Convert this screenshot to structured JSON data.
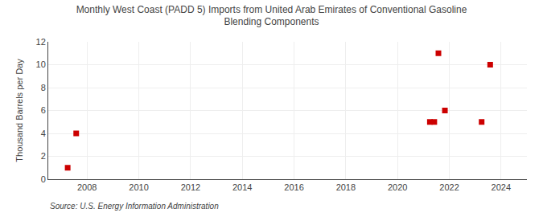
{
  "chart_data": {
    "type": "scatter",
    "title": "Monthly West Coast (PADD 5) Imports from United Arab Emirates of Conventional Gasoline\nBlending Components",
    "ylabel": "Thousand Barrels per Day",
    "source": "Source: U.S. Energy Information Administration",
    "x": [
      2007.25,
      2007.58,
      2021.25,
      2021.42,
      2021.58,
      2021.83,
      2023.25,
      2023.58
    ],
    "values": [
      1,
      4,
      5,
      5,
      11,
      6,
      5,
      10
    ],
    "color": "#cc0000",
    "marker": "square",
    "xlim": [
      2006.5,
      2025.0
    ],
    "ylim": [
      0,
      12
    ],
    "xticks": [
      2008,
      2010,
      2012,
      2014,
      2016,
      2018,
      2020,
      2022,
      2024
    ],
    "yticks": [
      0,
      2,
      4,
      6,
      8,
      10,
      12
    ],
    "grid": true
  }
}
